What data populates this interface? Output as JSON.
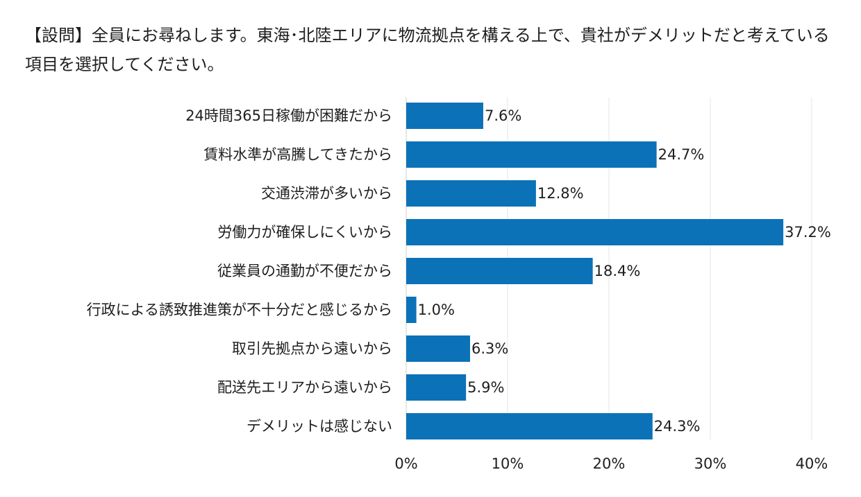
{
  "page": {
    "title": "【設問】全員にお尋ねします。東海･北陸エリアに物流拠点を構える上で、貴社がデメリットだと考えている項目を選択してください。"
  },
  "chart_data": {
    "type": "bar",
    "orientation": "horizontal",
    "title": "【設問】全員にお尋ねします。東海･北陸エリアに物流拠点を構える上で、貴社がデメリットだと考えている項目を選択してください。",
    "categories": [
      "24時間365日稼働が困難だから",
      "賃料水準が高騰してきたから",
      "交通渋滞が多いから",
      "労働力が確保しにくいから",
      "従業員の通勤が不便だから",
      "行政による誘致推進策が不十分だと感じるから",
      "取引先拠点から遠いから",
      "配送先エリアから遠いから",
      "デメリットは感じない"
    ],
    "values": [
      7.6,
      24.7,
      12.8,
      37.2,
      18.4,
      1.0,
      6.3,
      5.9,
      24.3
    ],
    "value_labels": [
      "7.6%",
      "24.7%",
      "12.8%",
      "37.2%",
      "18.4%",
      "1.0%",
      "6.3%",
      "5.9%",
      "24.3%"
    ],
    "xlim": [
      0,
      40
    ],
    "x_ticks": [
      0,
      10,
      20,
      30,
      40
    ],
    "x_tick_labels": [
      "0%",
      "10%",
      "20%",
      "30%",
      "40%"
    ],
    "xlabel": "",
    "ylabel": "",
    "grid": true,
    "legend": false,
    "bar_color": "#0b72b8",
    "grid_color": "#e6e6e6"
  }
}
